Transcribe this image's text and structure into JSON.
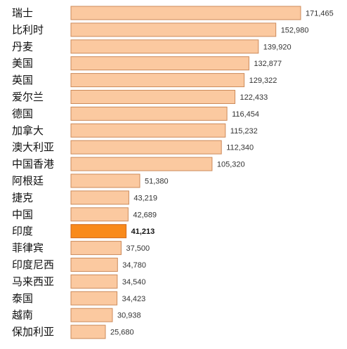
{
  "chart_data": {
    "type": "bar",
    "orientation": "horizontal",
    "categories": [
      "瑞士",
      "比利时",
      "丹麦",
      "美国",
      "英国",
      "爱尔兰",
      "德国",
      "加拿大",
      "澳大利亚",
      "中国香港",
      "阿根廷",
      "捷克",
      "中国",
      "印度",
      "菲律宾",
      "印度尼西",
      "马来西亚",
      "泰国",
      "越南",
      "保加利亚"
    ],
    "values": [
      171465,
      152980,
      139920,
      132877,
      129322,
      122433,
      116454,
      115232,
      112340,
      105320,
      51380,
      43219,
      42689,
      41213,
      37500,
      34780,
      34540,
      34423,
      30938,
      25680
    ],
    "value_labels": [
      "171,465",
      "152,980",
      "139,920",
      "132,877",
      "129,322",
      "122,433",
      "116,454",
      "115,232",
      "112,340",
      "105,320",
      "51,380",
      "43,219",
      "42,689",
      "41,213",
      "37,500",
      "34,780",
      "34,540",
      "34,423",
      "30,938",
      "25,680"
    ],
    "highlight": "印度",
    "colors": {
      "bar_fill": "#fbc9a0",
      "bar_stroke": "#cc8a5a",
      "highlight_fill": "#f98a1b",
      "highlight_stroke": "#d0661a"
    }
  }
}
